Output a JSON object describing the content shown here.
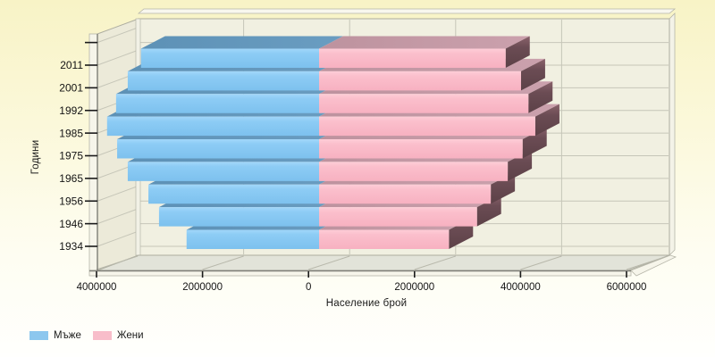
{
  "axes": {
    "x_title": "Население брой",
    "y_title": "Години"
  },
  "legend": {
    "men": "Мъже",
    "women": "Жени"
  },
  "chart_data": {
    "type": "bar",
    "variant": "3d horizontal population pyramid (diverging bars)",
    "title": "",
    "xlabel": "Население брой",
    "ylabel": "Години",
    "categories": [
      "2011",
      "2001",
      "1992",
      "1985",
      "1975",
      "1965",
      "1956",
      "1946",
      "1934"
    ],
    "series": [
      {
        "name": "Мъже",
        "side": "left",
        "color": "#8cc7ee",
        "values": [
          3360000,
          3610000,
          3830000,
          4000000,
          3810000,
          3610000,
          3220000,
          3020000,
          2500000
        ]
      },
      {
        "name": "Жени",
        "side": "right",
        "color": "#f8bdca",
        "values": [
          3520000,
          3810000,
          3950000,
          4080000,
          3840000,
          3560000,
          3240000,
          2980000,
          2450000
        ]
      }
    ],
    "x_axis": {
      "range": [
        -4000000,
        6000000
      ],
      "tick_step": 2000000,
      "tick_values": [
        -4000000,
        -2000000,
        0,
        2000000,
        4000000,
        6000000
      ],
      "tick_labels": [
        "4000000",
        "2000000",
        "0",
        "2000000",
        "4000000",
        "6000000"
      ],
      "grid": true
    },
    "y_axis": {
      "tick_labels": [
        "2011",
        "2001",
        "1992",
        "1985",
        "1975",
        "1965",
        "1956",
        "1946",
        "1934"
      ],
      "grid": true
    },
    "legend_position": "bottom-left",
    "colors": {
      "men_front": "#8cc7ee",
      "men_top": "#6296bb",
      "women_front": "#f8bdca",
      "women_top": "#c49aa6",
      "women_side_dark": "#5c4147",
      "wall": "#f1f0e1",
      "left_wall": "#ecead9",
      "floor": "#e2e3d9",
      "gridline": "#c6c6b8"
    }
  }
}
